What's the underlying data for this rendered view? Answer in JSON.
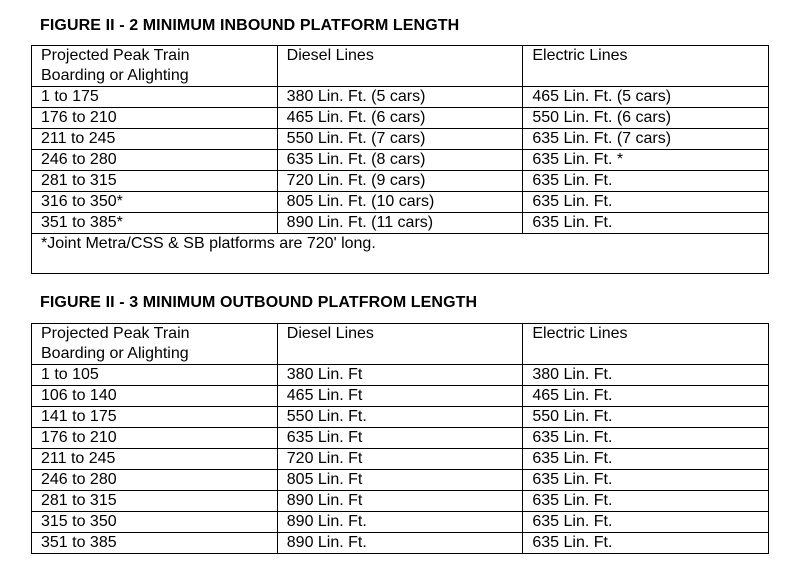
{
  "figure2": {
    "title": "FIGURE II - 2  MINIMUM INBOUND PLATFORM LENGTH",
    "headers": [
      "Projected Peak Train Boarding or Alighting",
      "Diesel Lines",
      "Electric Lines"
    ],
    "header_col1_line1": "Projected Peak Train",
    "header_col1_line2": "Boarding or Alighting",
    "rows": [
      [
        "1 to 175",
        "380 Lin. Ft. (5 cars)",
        "465 Lin. Ft. (5 cars)"
      ],
      [
        "176 to 210",
        "465 Lin. Ft. (6 cars)",
        "550 Lin. Ft. (6 cars)"
      ],
      [
        "211 to 245",
        "550 Lin. Ft. (7 cars)",
        "635 Lin. Ft. (7 cars)"
      ],
      [
        "246 to 280",
        "635 Lin. Ft. (8 cars)",
        "635 Lin. Ft. *"
      ],
      [
        "281 to 315",
        "720 Lin. Ft. (9 cars)",
        "635 Lin. Ft."
      ],
      [
        "316 to 350*",
        "805 Lin. Ft. (10 cars)",
        "635 Lin. Ft."
      ],
      [
        "351 to 385*",
        "890 Lin. Ft. (11 cars)",
        "635 Lin. Ft."
      ]
    ],
    "note": "*Joint Metra/CSS & SB platforms are 720' long."
  },
  "figure3": {
    "title": "FIGURE II - 3  MINIMUM OUTBOUND PLATFROM LENGTH",
    "headers": [
      "Projected Peak Train Boarding or Alighting",
      "Diesel Lines",
      "Electric Lines"
    ],
    "header_col1_line1": "Projected Peak Train",
    "header_col1_line2": "Boarding or Alighting",
    "rows": [
      [
        "1 to 105",
        "380 Lin. Ft",
        "380 Lin. Ft."
      ],
      [
        "106 to 140",
        "465 Lin. Ft",
        "465 Lin. Ft."
      ],
      [
        "141 to 175",
        "550 Lin. Ft.",
        "550 Lin. Ft."
      ],
      [
        "176 to 210",
        "635 Lin. Ft",
        "635 Lin. Ft."
      ],
      [
        "211 to 245",
        "720 Lin. Ft",
        "635 Lin. Ft."
      ],
      [
        "246 to 280",
        "805 Lin. Ft",
        "635 Lin. Ft."
      ],
      [
        "281 to 315",
        "890 Lin. Ft",
        "635 Lin. Ft."
      ],
      [
        "315 to 350",
        "890 Lin. Ft.",
        "635 Lin. Ft."
      ],
      [
        "351 to 385",
        "890 Lin. Ft.",
        "635 Lin. Ft."
      ]
    ]
  }
}
